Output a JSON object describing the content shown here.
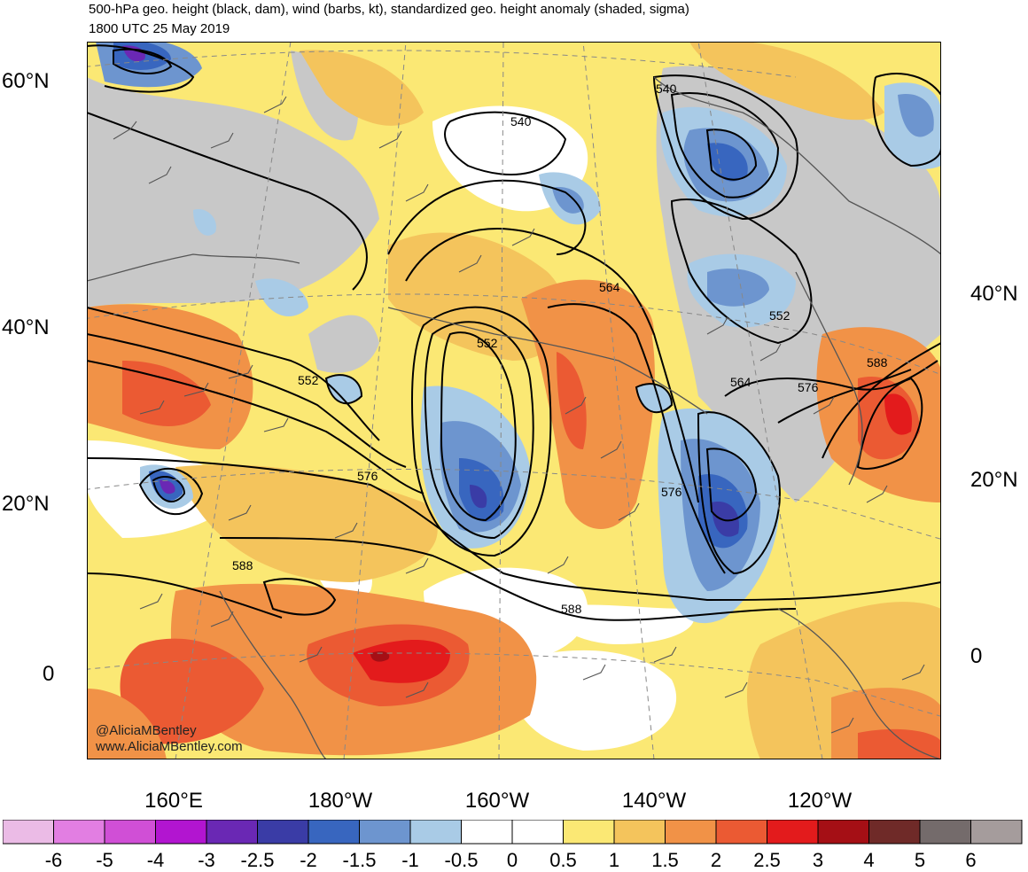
{
  "title": {
    "line1": "500-hPa geo. height (black, dam), wind (barbs, kt), standardized geo. height anomaly (shaded, sigma)",
    "line2": "1800 UTC 25 May 2019"
  },
  "axes": {
    "left_lat": [
      "60°N",
      "40°N",
      "20°N",
      "0"
    ],
    "right_lat": [
      "40°N",
      "20°N",
      "0"
    ],
    "lon": [
      "160°E",
      "180°W",
      "160°W",
      "140°W",
      "120°W"
    ]
  },
  "contour_labels": [
    "540",
    "540",
    "552",
    "552",
    "552",
    "564",
    "564",
    "576",
    "576",
    "576",
    "588",
    "588",
    "588"
  ],
  "credit": {
    "line1": "@AliciaMBentley",
    "line2": "www.AliciaMBentley.com"
  },
  "colorbar": {
    "labels": [
      "-6",
      "-5",
      "-4",
      "-3",
      "-2.5",
      "-2",
      "-1.5",
      "-1",
      "-0.5",
      "0",
      "0.5",
      "1",
      "1.5",
      "2",
      "2.5",
      "3",
      "4",
      "5",
      "6"
    ],
    "colors": [
      "#ebbbe6",
      "#e27ee2",
      "#d04fd6",
      "#b215d0",
      "#6a28b4",
      "#3a3ca6",
      "#3866bf",
      "#6d95cf",
      "#a9cbe6",
      "#ffffff",
      "#ffffff",
      "#fbe874",
      "#f4c45c",
      "#f19247",
      "#eb5a33",
      "#e31b1c",
      "#a50f15",
      "#6f2a28",
      "#746b6b",
      "#a59c9c"
    ]
  },
  "map_colors": {
    "land_gray": "#c8c8c8",
    "yellow": "#fbe874",
    "orange1": "#f4c45c",
    "orange2": "#f19247",
    "red1": "#eb5a33",
    "red2": "#e31b1c",
    "blue1": "#a9cbe6",
    "blue2": "#6d95cf",
    "blue3": "#3866bf",
    "blue4": "#3a3ca6"
  }
}
